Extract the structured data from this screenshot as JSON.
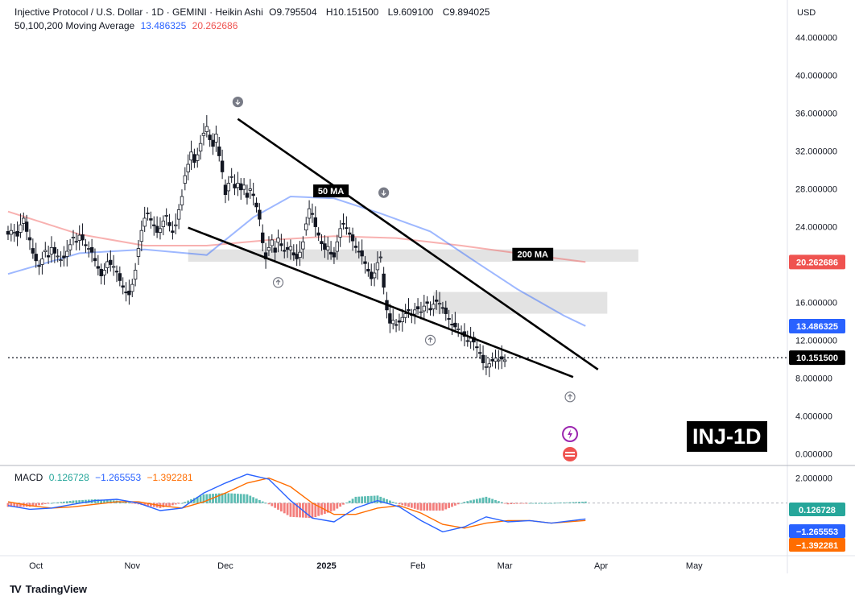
{
  "header": {
    "title": "Injective Protocol / U.S. Dollar · 1D · GEMINI · Heikin Ashi",
    "ohlc": [
      {
        "key": "O",
        "value": "9.795504"
      },
      {
        "key": "H",
        "value": "10.151500"
      },
      {
        "key": "L",
        "value": "9.609100"
      },
      {
        "key": "C",
        "value": "9.894025"
      }
    ],
    "ma_label": "50,100,200 Moving Average",
    "ma50_value": "13.486325",
    "ma200_value": "20.262686",
    "macd_label": "MACD",
    "macd_values": [
      "0.126728",
      "−1.265553",
      "−1.392281"
    ]
  },
  "currency": "USD",
  "ticker_label": "INJ-1D",
  "annotations": {
    "ma50": "50 MA",
    "ma200": "200 MA"
  },
  "brand": "TradingView",
  "colors": {
    "bull": "#131722",
    "bear": "#131722",
    "ma50": "#2962ff",
    "ma200": "#ef5350",
    "macd_line": "#2962ff",
    "signal_line": "#ff6d00",
    "hist_pos": "#26a69a",
    "hist_neg": "#ef5350",
    "wedge": "#000000",
    "zone": "#d9d9d9"
  },
  "chart_data": {
    "type": "candlestick",
    "price_axis": {
      "ticks": [
        "44.000000",
        "40.000000",
        "36.000000",
        "32.000000",
        "28.000000",
        "24.000000",
        "20.000000",
        "16.000000",
        "12.000000",
        "8.000000",
        "4.000000",
        "0.000000"
      ],
      "range": [
        -1,
        45
      ]
    },
    "time_axis": {
      "ticks": [
        "Oct",
        "Nov",
        "Dec",
        "2025",
        "Feb",
        "Mar",
        "Apr",
        "May"
      ],
      "range_start": "2024-09-22",
      "range_end": "2025-05-31"
    },
    "price_labels": [
      {
        "text": "20.262686",
        "value": 20.262686,
        "color": "#ef5350"
      },
      {
        "text": "13.486325",
        "value": 13.486325,
        "color": "#2962ff"
      },
      {
        "text": "10.151500",
        "value": 10.1515,
        "color": "#000000"
      }
    ],
    "last_price": 10.1515,
    "candles_close": [
      23.2,
      23.6,
      23.4,
      23.0,
      24.2,
      24.9,
      23.5,
      22.6,
      21.2,
      20.4,
      19.8,
      20.6,
      21.5,
      20.8,
      21.8,
      21.2,
      20.9,
      20.5,
      20.7,
      21.4,
      22.1,
      22.9,
      22.4,
      23.1,
      22.6,
      22.0,
      21.7,
      21.3,
      20.4,
      19.6,
      18.8,
      19.4,
      20.3,
      20.0,
      19.8,
      19.2,
      18.3,
      17.6,
      17.0,
      16.8,
      17.9,
      19.4,
      21.7,
      23.6,
      24.9,
      25.4,
      24.7,
      24.1,
      23.4,
      23.8,
      24.6,
      25.2,
      24.1,
      23.4,
      24.2,
      25.8,
      27.2,
      29.4,
      30.6,
      31.9,
      30.8,
      31.6,
      32.8,
      33.9,
      34.6,
      33.2,
      32.5,
      33.8,
      31.5,
      29.8,
      27.4,
      28.6,
      29.3,
      28.1,
      28.6,
      27.9,
      28.4,
      27.1,
      28.0,
      27.3,
      26.1,
      24.8,
      22.3,
      20.6,
      21.8,
      22.6,
      21.3,
      22.8,
      22.0,
      21.4,
      21.6,
      21.9,
      21.0,
      20.6,
      21.3,
      22.4,
      24.3,
      25.9,
      25.3,
      24.0,
      23.1,
      22.2,
      21.6,
      21.9,
      21.1,
      20.8,
      22.4,
      23.8,
      24.3,
      23.9,
      23.2,
      22.5,
      21.8,
      21.4,
      20.9,
      20.1,
      19.3,
      18.5,
      19.1,
      20.2,
      20.8,
      17.6,
      15.2,
      13.8,
      14.1,
      13.6,
      13.9,
      14.4,
      14.8,
      15.1,
      14.7,
      15.2,
      15.3,
      15.0,
      15.6,
      15.9,
      15.2,
      15.8,
      16.1,
      15.9,
      15.4,
      14.8,
      14.2,
      13.6,
      13.4,
      13.2,
      12.8,
      12.4,
      11.9,
      12.2,
      11.8,
      11.2,
      10.6,
      9.6,
      9.2,
      9.5,
      9.8,
      10.1,
      9.9,
      10.0,
      9.9
    ],
    "candles_start": "2024-09-22",
    "ma50": {
      "name": "50",
      "value": 13.486325,
      "points": [
        [
          "2024-09-22",
          19.0
        ],
        [
          "2024-10-15",
          21.2
        ],
        [
          "2024-11-05",
          21.6
        ],
        [
          "2024-11-25",
          21.0
        ],
        [
          "2024-12-10",
          25.0
        ],
        [
          "2024-12-22",
          27.2
        ],
        [
          "2025-01-05",
          27.0
        ],
        [
          "2025-01-20",
          25.4
        ],
        [
          "2025-02-05",
          23.5
        ],
        [
          "2025-02-20",
          20.2
        ],
        [
          "2025-03-05",
          17.4
        ],
        [
          "2025-03-20",
          14.6
        ],
        [
          "2025-03-27",
          13.5
        ]
      ]
    },
    "ma200": {
      "name": "200",
      "value": 20.262686,
      "points": [
        [
          "2024-09-22",
          25.6
        ],
        [
          "2024-10-15",
          23.2
        ],
        [
          "2024-11-05",
          22.0
        ],
        [
          "2024-11-25",
          22.0
        ],
        [
          "2024-12-15",
          22.6
        ],
        [
          "2025-01-05",
          23.0
        ],
        [
          "2025-01-25",
          22.8
        ],
        [
          "2025-02-15",
          22.0
        ],
        [
          "2025-03-05",
          21.2
        ],
        [
          "2025-03-27",
          20.26
        ]
      ]
    },
    "wedge_upper": [
      [
        "2024-12-05",
        35.4
      ],
      [
        "2025-03-31",
        8.9
      ]
    ],
    "wedge_lower": [
      [
        "2024-11-19",
        23.9
      ],
      [
        "2025-03-23",
        8.1
      ]
    ],
    "zones": [
      {
        "from": "2024-11-19",
        "to": "2025-04-13",
        "low": 20.3,
        "high": 21.6
      },
      {
        "from": "2025-02-06",
        "to": "2025-04-03",
        "low": 14.8,
        "high": 17.1
      }
    ],
    "arrow_markers": [
      {
        "date": "2024-12-05",
        "price": 37.2,
        "dir": "down"
      },
      {
        "date": "2025-01-21",
        "price": 27.6,
        "dir": "down"
      },
      {
        "date": "2024-12-18",
        "price": 18.1,
        "dir": "up"
      },
      {
        "date": "2025-02-05",
        "price": 12.0,
        "dir": "up"
      },
      {
        "date": "2025-03-22",
        "price": 6.0,
        "dir": "up"
      }
    ],
    "macd": {
      "axis_ticks": [
        "2.000000"
      ],
      "range": [
        -4.2,
        3.0
      ],
      "labels": [
        {
          "text": "0.126728",
          "value": 0.126728,
          "color": "#26a69a"
        },
        {
          "text": "−1.265553",
          "value": -1.265553,
          "color": "#2962ff"
        },
        {
          "text": "−1.392281",
          "value": -1.392281,
          "color": "#ff6d00"
        }
      ],
      "macd_line": [
        [
          "2024-09-22",
          -0.2
        ],
        [
          "2024-09-29",
          -0.5
        ],
        [
          "2024-10-06",
          -0.4
        ],
        [
          "2024-10-13",
          -0.1
        ],
        [
          "2024-10-20",
          0.2
        ],
        [
          "2024-10-27",
          0.3
        ],
        [
          "2024-11-03",
          0.0
        ],
        [
          "2024-11-10",
          -0.6
        ],
        [
          "2024-11-17",
          -0.4
        ],
        [
          "2024-11-24",
          0.8
        ],
        [
          "2024-12-01",
          1.6
        ],
        [
          "2024-12-08",
          2.3
        ],
        [
          "2024-12-15",
          1.9
        ],
        [
          "2024-12-22",
          0.2
        ],
        [
          "2024-12-29",
          -1.2
        ],
        [
          "2025-01-05",
          -1.5
        ],
        [
          "2025-01-12",
          -0.4
        ],
        [
          "2025-01-19",
          0.2
        ],
        [
          "2025-01-26",
          -0.3
        ],
        [
          "2025-02-02",
          -1.4
        ],
        [
          "2025-02-09",
          -2.3
        ],
        [
          "2025-02-16",
          -1.9
        ],
        [
          "2025-02-23",
          -1.1
        ],
        [
          "2025-03-02",
          -1.5
        ],
        [
          "2025-03-09",
          -1.4
        ],
        [
          "2025-03-16",
          -1.6
        ],
        [
          "2025-03-27",
          -1.27
        ]
      ],
      "signal_line": [
        [
          "2024-09-22",
          0.1
        ],
        [
          "2024-09-29",
          -0.2
        ],
        [
          "2024-10-06",
          -0.4
        ],
        [
          "2024-10-13",
          -0.3
        ],
        [
          "2024-10-20",
          -0.1
        ],
        [
          "2024-10-27",
          0.1
        ],
        [
          "2024-11-03",
          0.1
        ],
        [
          "2024-11-10",
          -0.2
        ],
        [
          "2024-11-17",
          -0.4
        ],
        [
          "2024-11-24",
          0.1
        ],
        [
          "2024-12-01",
          0.8
        ],
        [
          "2024-12-08",
          1.6
        ],
        [
          "2024-12-15",
          2.0
        ],
        [
          "2024-12-22",
          1.3
        ],
        [
          "2024-12-29",
          0.0
        ],
        [
          "2025-01-05",
          -0.9
        ],
        [
          "2025-01-12",
          -0.9
        ],
        [
          "2025-01-19",
          -0.4
        ],
        [
          "2025-01-26",
          -0.2
        ],
        [
          "2025-02-02",
          -0.8
        ],
        [
          "2025-02-09",
          -1.7
        ],
        [
          "2025-02-16",
          -2.0
        ],
        [
          "2025-02-23",
          -1.6
        ],
        [
          "2025-03-02",
          -1.4
        ],
        [
          "2025-03-09",
          -1.4
        ],
        [
          "2025-03-16",
          -1.6
        ],
        [
          "2025-03-27",
          -1.39
        ]
      ]
    }
  }
}
